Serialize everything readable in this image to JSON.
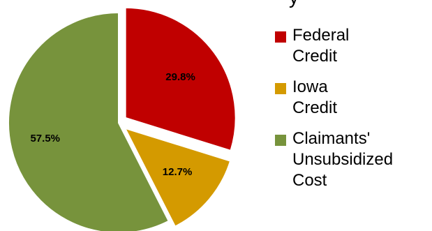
{
  "chart_data": {
    "type": "pie",
    "title_fragment": "y",
    "slices": [
      {
        "label": "Federal Credit",
        "value": 29.8,
        "display": "29.8%",
        "color": "#C00000",
        "exploded": true
      },
      {
        "label": "Iowa Credit",
        "value": 12.7,
        "display": "12.7%",
        "color": "#D49A00",
        "exploded": true
      },
      {
        "label": "Claimants' Unsubsidized Cost",
        "value": 57.5,
        "display": "57.5%",
        "color": "#77933C",
        "exploded": false
      }
    ],
    "legend": {
      "placement": "right",
      "items": [
        {
          "text": "Federal\nCredit",
          "color": "#C00000"
        },
        {
          "text": "Iowa\nCredit",
          "color": "#D49A00"
        },
        {
          "text": "Claimants'\nUnsubsidized\nCost",
          "color": "#77933C"
        }
      ]
    }
  }
}
